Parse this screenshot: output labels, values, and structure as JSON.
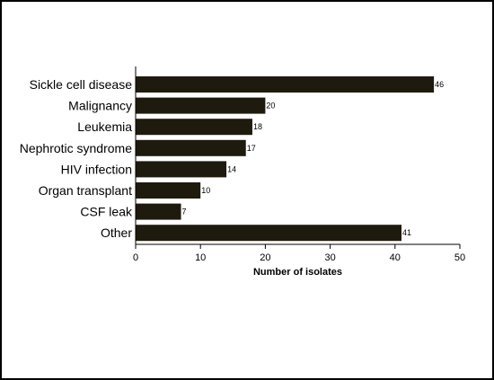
{
  "chart_data": {
    "type": "bar",
    "orientation": "horizontal",
    "categories": [
      "Sickle cell disease",
      "Malignancy",
      "Leukemia",
      "Nephrotic syndrome",
      "HIV infection",
      "Organ transplant",
      "CSF leak",
      "Other"
    ],
    "values": [
      46,
      20,
      18,
      17,
      14,
      10,
      7,
      41
    ],
    "xlabel": "Number of isolates",
    "ylabel": "",
    "xlim": [
      0,
      50
    ],
    "xticks": [
      0,
      10,
      20,
      30,
      40,
      50
    ],
    "grid": false,
    "data_labels": true,
    "bar_color": "#1f1a0e"
  }
}
